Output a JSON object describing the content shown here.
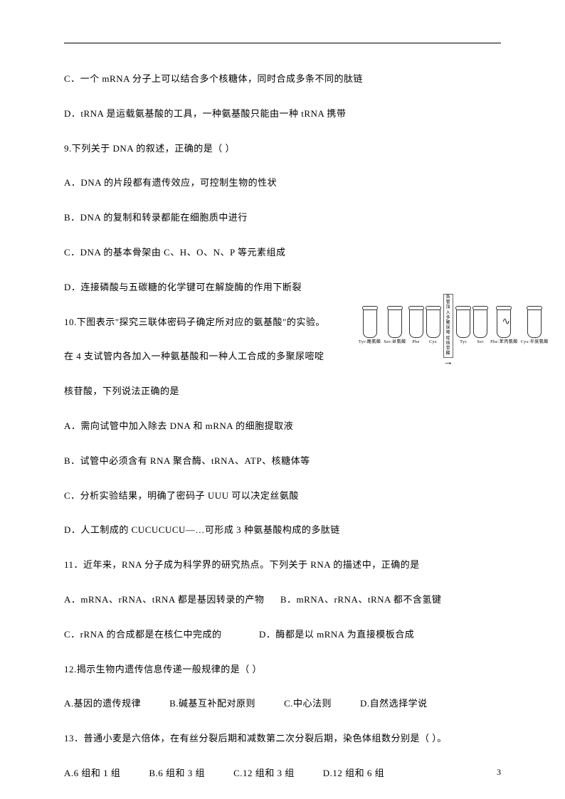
{
  "q8": {
    "optC": "C．一个 mRNA 分子上可以结合多个核糖体，同时合成多条不同的肽链",
    "optD": "D．tRNA 是运载氨基酸的工具，一种氨基酸只能由一种 tRNA 携带"
  },
  "q9": {
    "stem": "9.下列关于 DNA 的叙述，正确的是（ ）",
    "optA": "A．DNA 的片段都有遗传效应，可控制生物的性状",
    "optB": "B．DNA 的复制和转录都能在细胞质中进行",
    "optC": "C．DNA 的基本骨架由 C、H、O、N、P 等元素组成",
    "optD": "D．连接磷酸与五碳糖的化学键可在解旋酶的作用下断裂"
  },
  "q10": {
    "stem1": "10.下图表示\"探究三联体密码子确定所对应的氨基酸\"的实验。",
    "stem2": "在 4 支试管内各加入一种氨基酸和一种人工合成的多聚尿嘧啶",
    "stem3": "核苷酸，下列说法正确的是",
    "optA": "A．需向试管中加入除去 DNA 和 mRNA 的细胞提取液",
    "optB": "B．试管中必须含有 RNA 聚合酶、tRNA、ATP、核糖体等",
    "optC": "C．分析实验结果，明确了密码子 UUU 可以决定丝氨酸",
    "optD": "D．人工制成的 CUCUCUCU—…可形成 3 种氨基酸构成的多肽链",
    "figure": {
      "arrow_text": "各管加入多聚尿嘧啶核苷酸",
      "tubes_left": [
        {
          "label": "Tyr:酪氨酸"
        },
        {
          "label": "Ser:丝氨酸"
        },
        {
          "label": "Phe"
        },
        {
          "label": "Cys"
        }
      ],
      "tubes_right": [
        {
          "label": "Phe:苯丙氨酸",
          "squiggle": true
        },
        {
          "label": "Cys:半胱氨酸"
        }
      ]
    }
  },
  "q11": {
    "stem": "11．近年来，RNA 分子成为科学界的研究热点。下列关于 RNA 的描述中，正确的是",
    "optA": "A．mRNA、rRNA、tRNA 都是基因转录的产物",
    "optB": "B．mRNA、rRNA、tRNA 都不含氢键",
    "optC": "C．rRNA 的合成都是在核仁中完成的",
    "optD": "D．酶都是以 mRNA 为直接模板合成"
  },
  "q12": {
    "stem": "12.揭示生物内遗传信息传递一般规律的是（ ）",
    "optA": "A.基因的遗传规律",
    "optB": "B.碱基互补配对原则",
    "optC": "C.中心法则",
    "optD": "D.自然选择学说"
  },
  "q13": {
    "stem": "13．普通小麦是六倍体，在有丝分裂后期和减数第二次分裂后期，染色体组数分别是（ ）。",
    "optA": "A.6 组和 1 组",
    "optB": "B.6 组和 3 组",
    "optC": "C.12 组和 3 组",
    "optD": "D.12 组和 6 组"
  },
  "page_number": "3"
}
